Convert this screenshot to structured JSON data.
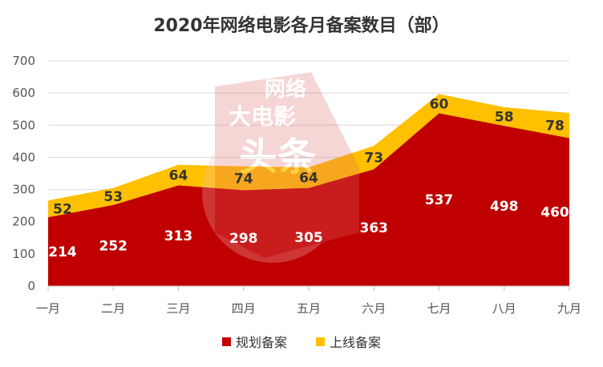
{
  "chart_data": {
    "type": "area",
    "stacked": true,
    "title": "2020年网络电影各月备案数目（部）",
    "categories": [
      "一月",
      "二月",
      "三月",
      "四月",
      "五月",
      "六月",
      "七月",
      "八月",
      "九月"
    ],
    "ylim": [
      0,
      700
    ],
    "yticks": [
      0,
      100,
      200,
      300,
      400,
      500,
      600,
      700
    ],
    "grid": true,
    "legend_position": "bottom",
    "series": [
      {
        "name": "规划备案",
        "color": "#c00000",
        "label_color": "#ffffff",
        "values": [
          214,
          252,
          313,
          298,
          305,
          363,
          537,
          498,
          460
        ]
      },
      {
        "name": "上线备案",
        "color": "#ffc000",
        "label_color": "#333333",
        "values": [
          52,
          53,
          64,
          74,
          64,
          73,
          60,
          58,
          78
        ]
      }
    ]
  },
  "watermark": {
    "text": [
      "网络",
      "大电影",
      "头条"
    ],
    "color": "#e58a8a"
  }
}
